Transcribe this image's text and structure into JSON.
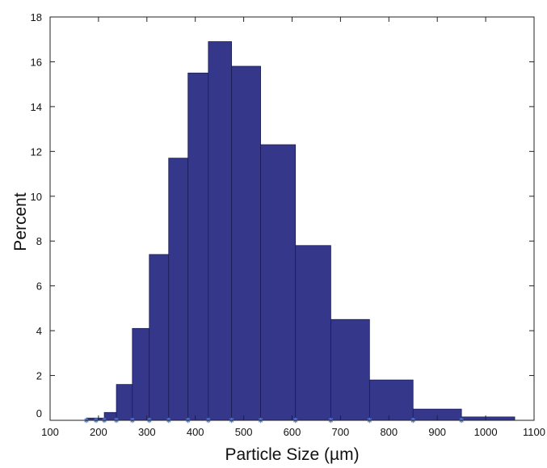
{
  "chart_data": {
    "type": "bar",
    "title": "",
    "xlabel": "Particle Size (µm)",
    "ylabel": "Percent",
    "xlim": [
      100,
      1100
    ],
    "ylim": [
      0,
      18
    ],
    "xticks": [
      "100",
      "200",
      "300",
      "400",
      "500",
      "600",
      "700",
      "800",
      "900",
      "1000",
      "1100"
    ],
    "yticks": [
      "0",
      "2",
      "4",
      "6",
      "8",
      "10",
      "12",
      "14",
      "16",
      "18"
    ],
    "grid": false,
    "legend": "none",
    "bar_color": "#35388a",
    "edge_color": "#1a1c55",
    "marker_color": "#5a7fd0",
    "bins": [
      {
        "x0": 175,
        "x1": 212,
        "value": 0.1
      },
      {
        "x0": 212,
        "x1": 237,
        "value": 0.35
      },
      {
        "x0": 237,
        "x1": 270,
        "value": 1.6
      },
      {
        "x0": 270,
        "x1": 305,
        "value": 4.1
      },
      {
        "x0": 305,
        "x1": 345,
        "value": 7.4
      },
      {
        "x0": 345,
        "x1": 385,
        "value": 11.7
      },
      {
        "x0": 385,
        "x1": 427,
        "value": 15.5
      },
      {
        "x0": 427,
        "x1": 475,
        "value": 16.9
      },
      {
        "x0": 475,
        "x1": 535,
        "value": 15.8
      },
      {
        "x0": 535,
        "x1": 607,
        "value": 12.3
      },
      {
        "x0": 607,
        "x1": 680,
        "value": 7.8
      },
      {
        "x0": 680,
        "x1": 760,
        "value": 4.5
      },
      {
        "x0": 760,
        "x1": 850,
        "value": 1.8
      },
      {
        "x0": 850,
        "x1": 950,
        "value": 0.5
      },
      {
        "x0": 950,
        "x1": 1060,
        "value": 0.15
      }
    ],
    "markers": [
      175,
      195,
      212,
      237,
      270,
      305,
      345,
      385,
      427,
      475,
      535,
      607,
      680,
      760,
      850,
      950
    ]
  }
}
